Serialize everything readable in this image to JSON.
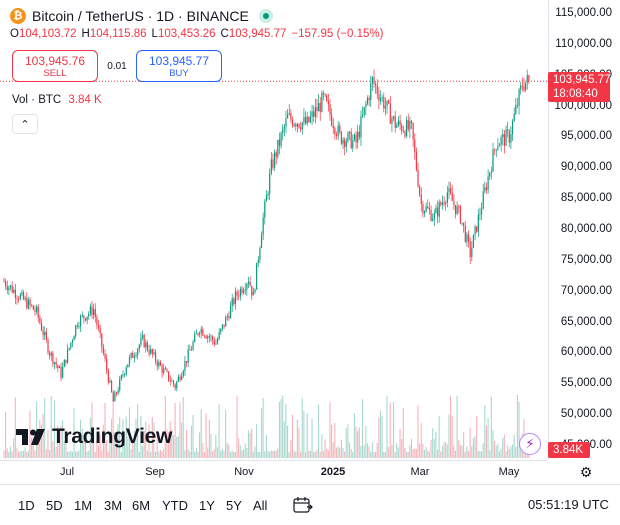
{
  "header": {
    "symbol_icon": "bitcoin-icon",
    "symbol_glyph": "₿",
    "title": "Bitcoin / TetherUS · 1D · BINANCE",
    "ohlc": {
      "o_label": "O",
      "o": "104,103.72",
      "h_label": "H",
      "h": "104,115.86",
      "l_label": "L",
      "l": "103,453.26",
      "c_label": "C",
      "c": "103,945.77",
      "change": "−157.95 (−0.15%)"
    }
  },
  "trade": {
    "sell_price": "103,945.76",
    "sell_label": "SELL",
    "spread": "0.01",
    "buy_price": "103,945.77",
    "buy_label": "BUY"
  },
  "volume": {
    "label": "Vol · BTC",
    "value": "3.84 K",
    "axis_tag": "3.84K"
  },
  "price_tag": {
    "price": "103,945.77",
    "countdown": "18:08:40"
  },
  "watermark": "TradingView",
  "price_axis": [
    "115,000.00",
    "110,000.00",
    "105,000.00",
    "100,000.00",
    "95,000.00",
    "90,000.00",
    "85,000.00",
    "80,000.00",
    "75,000.00",
    "70,000.00",
    "65,000.00",
    "60,000.00",
    "55,000.00",
    "50,000.00",
    "45,000.00"
  ],
  "time_axis": [
    {
      "label": "Jul",
      "bold": false
    },
    {
      "label": "Sep",
      "bold": false
    },
    {
      "label": "Nov",
      "bold": false
    },
    {
      "label": "2025",
      "bold": true
    },
    {
      "label": "Mar",
      "bold": false
    },
    {
      "label": "May",
      "bold": false
    }
  ],
  "ranges": [
    "1D",
    "5D",
    "1M",
    "3M",
    "6M",
    "YTD",
    "1Y",
    "5Y",
    "All"
  ],
  "clock": "05:51:19 UTC",
  "colors": {
    "up": "#089981",
    "down": "#f23645",
    "buy": "#2962ff",
    "grid": "#e0e3eb",
    "vol_up": "#a8d8d0",
    "vol_down": "#f7b3b8"
  },
  "chart_data": {
    "type": "candlestick",
    "title": "Bitcoin / TetherUS · 1D · BINANCE",
    "ylim": [
      44000,
      117000
    ],
    "last_price": 103945.77,
    "anchors": [
      {
        "t": 0,
        "p": 71500
      },
      {
        "t": 10,
        "p": 69000
      },
      {
        "t": 20,
        "p": 66500
      },
      {
        "t": 28,
        "p": 60000
      },
      {
        "t": 35,
        "p": 56500
      },
      {
        "t": 45,
        "p": 65000
      },
      {
        "t": 55,
        "p": 67000
      },
      {
        "t": 62,
        "p": 58500
      },
      {
        "t": 67,
        "p": 52000
      },
      {
        "t": 75,
        "p": 58000
      },
      {
        "t": 85,
        "p": 62000
      },
      {
        "t": 95,
        "p": 58000
      },
      {
        "t": 105,
        "p": 54500
      },
      {
        "t": 120,
        "p": 64000
      },
      {
        "t": 130,
        "p": 61500
      },
      {
        "t": 142,
        "p": 69000
      },
      {
        "t": 150,
        "p": 72000
      },
      {
        "t": 153,
        "p": 69000
      },
      {
        "t": 158,
        "p": 80000
      },
      {
        "t": 164,
        "p": 90000
      },
      {
        "t": 174,
        "p": 98000
      },
      {
        "t": 186,
        "p": 97000
      },
      {
        "t": 196,
        "p": 101000
      },
      {
        "t": 206,
        "p": 95000
      },
      {
        "t": 216,
        "p": 94000
      },
      {
        "t": 226,
        "p": 104000
      },
      {
        "t": 232,
        "p": 101000
      },
      {
        "t": 240,
        "p": 97000
      },
      {
        "t": 250,
        "p": 96000
      },
      {
        "t": 256,
        "p": 84000
      },
      {
        "t": 264,
        "p": 82000
      },
      {
        "t": 272,
        "p": 86000
      },
      {
        "t": 280,
        "p": 82000
      },
      {
        "t": 286,
        "p": 76000
      },
      {
        "t": 294,
        "p": 85000
      },
      {
        "t": 302,
        "p": 94000
      },
      {
        "t": 310,
        "p": 95000
      },
      {
        "t": 318,
        "p": 103500
      },
      {
        "t": 322,
        "p": 104000
      }
    ]
  }
}
